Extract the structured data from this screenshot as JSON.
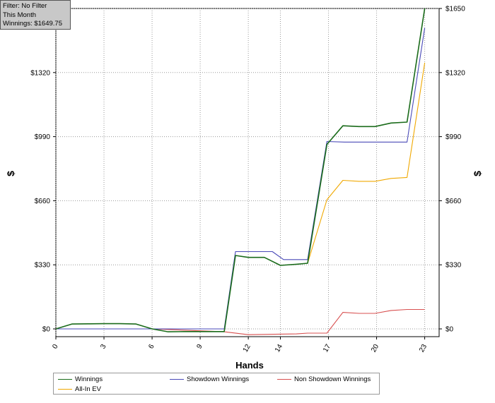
{
  "info": {
    "filter": "Filter: No Filter",
    "period": "This Month",
    "winnings": "Winnings: $1649.75"
  },
  "chart_data": {
    "type": "line",
    "xlabel": "Hands",
    "ylabel_left": "$",
    "ylabel_right": "$",
    "xlim": [
      0,
      23.9
    ],
    "ylim": [
      -40,
      1650
    ],
    "x_ticks": [
      0,
      3,
      6,
      9,
      12,
      14,
      17,
      20,
      23
    ],
    "y_ticks": [
      {
        "value": 0,
        "label": "$0"
      },
      {
        "value": 330,
        "label": "$330"
      },
      {
        "value": 660,
        "label": "$660"
      },
      {
        "value": 990,
        "label": "$990"
      },
      {
        "value": 1320,
        "label": "$1320"
      },
      {
        "value": 1650,
        "label": "$1650"
      }
    ],
    "grid": true,
    "legend_position": "bottom",
    "series": [
      {
        "name": "Winnings",
        "color": "#1a6b1a",
        "points": [
          [
            0,
            0
          ],
          [
            1,
            25
          ],
          [
            2,
            26
          ],
          [
            3,
            27
          ],
          [
            4,
            27
          ],
          [
            5,
            25
          ],
          [
            6,
            0
          ],
          [
            7,
            -15
          ],
          [
            8,
            -14
          ],
          [
            9,
            -14
          ],
          [
            10,
            -14
          ],
          [
            10.5,
            -14
          ],
          [
            11.2,
            378
          ],
          [
            12,
            368
          ],
          [
            13,
            368
          ],
          [
            14,
            327
          ],
          [
            15,
            333
          ],
          [
            15.7,
            338
          ],
          [
            16.9,
            950
          ],
          [
            17.9,
            1046
          ],
          [
            18.9,
            1042
          ],
          [
            19.9,
            1042
          ],
          [
            20.9,
            1060
          ],
          [
            21.9,
            1065
          ],
          [
            23,
            1650
          ]
        ]
      },
      {
        "name": "Showdown Winnings",
        "color": "#4a4ab8",
        "points": [
          [
            0,
            0
          ],
          [
            6,
            0
          ],
          [
            10.5,
            0
          ],
          [
            11.2,
            398
          ],
          [
            13.5,
            398
          ],
          [
            14.2,
            357
          ],
          [
            15.7,
            357
          ],
          [
            16.9,
            965
          ],
          [
            18,
            962
          ],
          [
            20,
            962
          ],
          [
            21.9,
            962
          ],
          [
            23,
            1550
          ]
        ]
      },
      {
        "name": "Non Showdown Winnings",
        "color": "#d85050",
        "points": [
          [
            0,
            0
          ],
          [
            6,
            0
          ],
          [
            10.5,
            -15
          ],
          [
            12,
            -30
          ],
          [
            15,
            -26
          ],
          [
            15.7,
            -22
          ],
          [
            16.9,
            -22
          ],
          [
            17.9,
            85
          ],
          [
            18.9,
            80
          ],
          [
            19.9,
            80
          ],
          [
            20.9,
            95
          ],
          [
            21.9,
            100
          ],
          [
            23,
            100
          ]
        ]
      },
      {
        "name": "All-In EV",
        "color": "#f0a800",
        "points": [
          [
            15.7,
            338
          ],
          [
            16.9,
            665
          ],
          [
            17.9,
            765
          ],
          [
            18.9,
            760
          ],
          [
            19.9,
            760
          ],
          [
            20.9,
            775
          ],
          [
            21.9,
            780
          ],
          [
            23,
            1370
          ]
        ]
      }
    ]
  }
}
